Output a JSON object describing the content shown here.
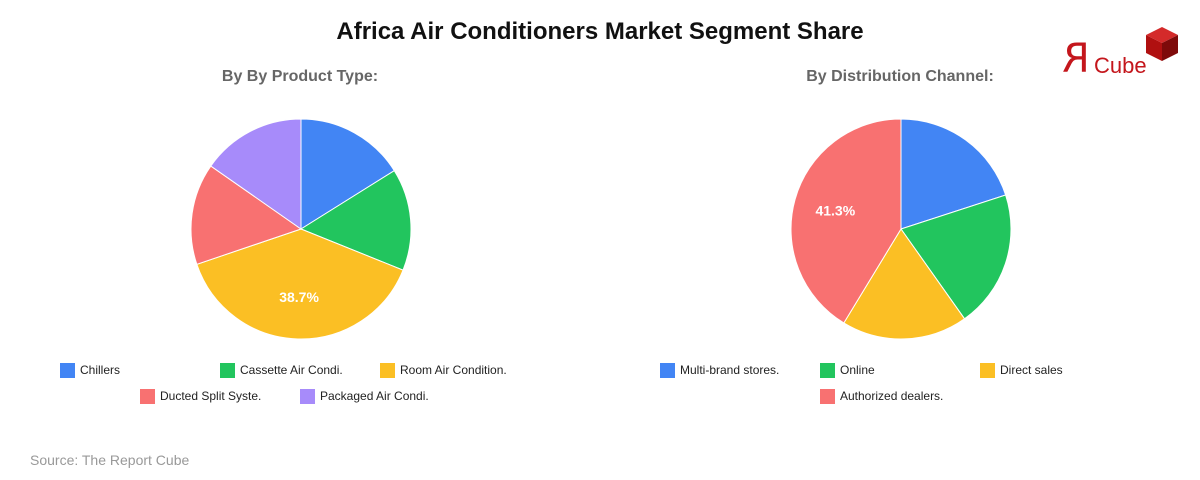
{
  "title": "Africa Air Conditioners Market Segment Share",
  "source": "Source: The Report Cube",
  "logo": {
    "r_glyph": "R",
    "text": "Cube",
    "color": "#c4161c"
  },
  "chart_data": [
    {
      "type": "pie",
      "title": "By By Product Type:",
      "categories": [
        "Chillers",
        "Cassette Air Condi.",
        "Room Air Condition.",
        "Ducted Split Syste.",
        "Packaged Air Condi."
      ],
      "values": [
        16.1,
        15.0,
        38.7,
        14.9,
        15.3
      ],
      "colors": [
        "#4285f4",
        "#22c55e",
        "#fbbf24",
        "#f87171",
        "#a78bfa"
      ],
      "data_labels": [
        {
          "category": "Room Air Condition.",
          "label": "38.7%"
        }
      ],
      "legend_position": "bottom"
    },
    {
      "type": "pie",
      "title": "By Distribution Channel:",
      "categories": [
        "Multi-brand stores.",
        "Online",
        "Direct sales",
        "Authorized dealers."
      ],
      "values": [
        20.0,
        20.2,
        18.5,
        41.3
      ],
      "colors": [
        "#4285f4",
        "#22c55e",
        "#fbbf24",
        "#f87171"
      ],
      "data_labels": [
        {
          "category": "Authorized dealers.",
          "label": "41.3%"
        }
      ],
      "legend_position": "bottom"
    }
  ]
}
